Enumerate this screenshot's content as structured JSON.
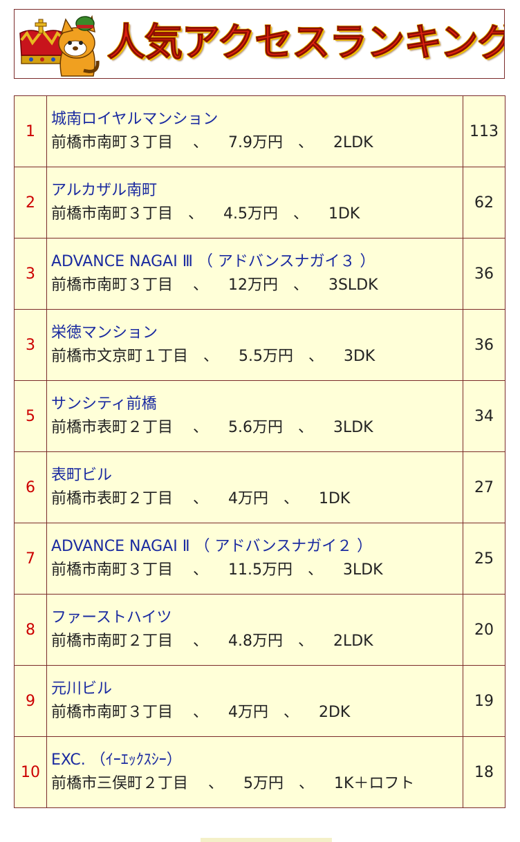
{
  "banner": {
    "title": "人気アクセスランキング"
  },
  "ranking": [
    {
      "rank": "1",
      "name": "城南ロイヤルマンション",
      "detail": "前橋市南町３丁目　 、 　7.9万円　、 　2LDK",
      "count": "113"
    },
    {
      "rank": "2",
      "name": "アルカザル南町",
      "detail": "前橋市南町３丁目　、 　4.5万円　、 　1DK",
      "count": "62"
    },
    {
      "rank": "3",
      "name": "ADVANCE NAGAI Ⅲ （ アドバンスナガイ３ ）",
      "detail": "前橋市南町３丁目　 、 　12万円　、 　3SLDK",
      "count": "36"
    },
    {
      "rank": "3",
      "name": "栄徳マンション",
      "detail": "前橋市文京町１丁目　、 　5.5万円　、 　3DK",
      "count": "36"
    },
    {
      "rank": "5",
      "name": "サンシティ前橋",
      "detail": "前橋市表町２丁目　 、 　5.6万円　、 　3LDK",
      "count": "34"
    },
    {
      "rank": "6",
      "name": "表町ビル",
      "detail": "前橋市表町２丁目　 、 　4万円　、 　1DK",
      "count": "27"
    },
    {
      "rank": "7",
      "name": "ADVANCE NAGAI Ⅱ （ アドバンスナガイ２ ）",
      "detail": "前橋市南町３丁目　 、 　11.5万円　、 　3LDK",
      "count": "25"
    },
    {
      "rank": "8",
      "name": "ファーストハイツ",
      "detail": "前橋市南町２丁目　 、 　4.8万円　、 　2LDK",
      "count": "20"
    },
    {
      "rank": "9",
      "name": "元川ビル",
      "detail": "前橋市南町３丁目　 、 　4万円　、 　2DK",
      "count": "19"
    },
    {
      "rank": "10",
      "name": "EXC. （ｲｰｴｯｸｽｼｰ）",
      "detail": "前橋市三俣町２丁目　 、 　5万円　、 　1K＋ロフト",
      "count": "18"
    }
  ]
}
